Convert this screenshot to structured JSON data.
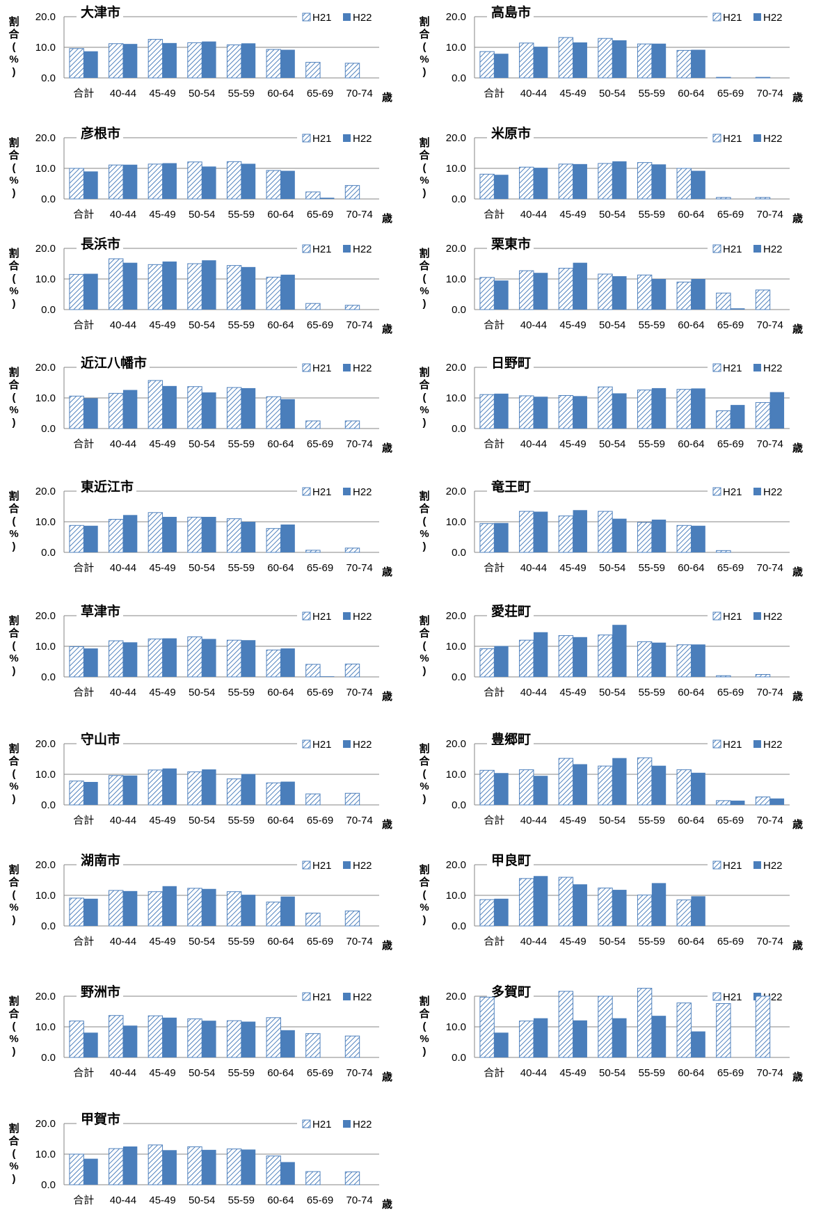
{
  "chart_data": [
    {
      "type": "bar",
      "title": "大津市",
      "ylabel": "割合(%)",
      "xunit": "歳",
      "legend": [
        "H21",
        "H22"
      ],
      "categories": [
        "合計",
        "40-44",
        "45-49",
        "50-54",
        "55-59",
        "60-64",
        "65-69",
        "70-74"
      ],
      "ylim": [
        0,
        20
      ],
      "yticks": [
        "20.0",
        "10.0",
        "0.0"
      ],
      "series": [
        {
          "name": "H21",
          "values": [
            9.6,
            11.2,
            12.6,
            11.5,
            10.8,
            9.3,
            5.1,
            4.8
          ]
        },
        {
          "name": "H22",
          "values": [
            8.7,
            11.1,
            11.4,
            11.9,
            11.3,
            9.2,
            0,
            0
          ]
        }
      ]
    },
    {
      "type": "bar",
      "title": "高島市",
      "ylabel": "割合(%)",
      "xunit": "歳",
      "legend": [
        "H21",
        "H22"
      ],
      "categories": [
        "合計",
        "40-44",
        "45-49",
        "50-54",
        "55-59",
        "60-64",
        "65-69",
        "70-74"
      ],
      "ylim": [
        0,
        20
      ],
      "yticks": [
        "20.0",
        "10.0",
        "0.0"
      ],
      "series": [
        {
          "name": "H21",
          "values": [
            8.6,
            11.4,
            13.2,
            12.9,
            11.1,
            9.0,
            0.2,
            0.2
          ]
        },
        {
          "name": "H22",
          "values": [
            7.9,
            10.2,
            11.6,
            12.3,
            11.2,
            9.2,
            0,
            0
          ]
        }
      ]
    },
    {
      "type": "bar",
      "title": "彦根市",
      "ylabel": "割合(%)",
      "xunit": "歳",
      "legend": [
        "H21",
        "H22"
      ],
      "categories": [
        "合計",
        "40-44",
        "45-49",
        "50-54",
        "55-59",
        "60-64",
        "65-69",
        "70-74"
      ],
      "ylim": [
        0,
        20
      ],
      "yticks": [
        "20.0",
        "10.0",
        "0.0"
      ],
      "series": [
        {
          "name": "H21",
          "values": [
            10.0,
            11.1,
            11.4,
            12.1,
            12.2,
            9.3,
            2.3,
            4.4
          ]
        },
        {
          "name": "H22",
          "values": [
            9.0,
            11.2,
            11.7,
            10.6,
            11.5,
            9.2,
            0.4,
            0
          ]
        }
      ]
    },
    {
      "type": "bar",
      "title": "米原市",
      "ylabel": "割合(%)",
      "xunit": "歳",
      "legend": [
        "H21",
        "H22"
      ],
      "categories": [
        "合計",
        "40-44",
        "45-49",
        "50-54",
        "55-59",
        "60-64",
        "65-69",
        "70-74"
      ],
      "ylim": [
        0,
        20
      ],
      "yticks": [
        "20.0",
        "10.0",
        "0.0"
      ],
      "series": [
        {
          "name": "H21",
          "values": [
            8.1,
            10.4,
            11.4,
            11.6,
            11.9,
            10.0,
            0.5,
            0.5
          ]
        },
        {
          "name": "H22",
          "values": [
            7.9,
            10.2,
            11.4,
            12.3,
            11.3,
            9.2,
            0,
            0
          ]
        }
      ]
    },
    {
      "type": "bar",
      "title": "長浜市",
      "ylabel": "割合(%)",
      "xunit": "歳",
      "legend": [
        "H21",
        "H22"
      ],
      "categories": [
        "合計",
        "40-44",
        "45-49",
        "50-54",
        "55-59",
        "60-64",
        "65-69",
        "70-74"
      ],
      "ylim": [
        0,
        20
      ],
      "yticks": [
        "20.0",
        "10.0",
        "0.0"
      ],
      "series": [
        {
          "name": "H21",
          "values": [
            11.5,
            16.6,
            14.7,
            15.0,
            14.4,
            10.6,
            2.0,
            1.4
          ]
        },
        {
          "name": "H22",
          "values": [
            11.7,
            15.3,
            15.7,
            16.1,
            13.9,
            11.4,
            0,
            0
          ]
        }
      ]
    },
    {
      "type": "bar",
      "title": "栗東市",
      "ylabel": "割合(%)",
      "xunit": "歳",
      "legend": [
        "H21",
        "H22"
      ],
      "categories": [
        "合計",
        "40-44",
        "45-49",
        "50-54",
        "55-59",
        "60-64",
        "65-69",
        "70-74"
      ],
      "ylim": [
        0,
        20
      ],
      "yticks": [
        "20.0",
        "10.0",
        "0.0"
      ],
      "series": [
        {
          "name": "H21",
          "values": [
            10.5,
            12.7,
            13.5,
            11.6,
            11.3,
            9.0,
            5.4,
            6.4
          ]
        },
        {
          "name": "H22",
          "values": [
            9.5,
            12.0,
            15.3,
            10.9,
            10.0,
            10.0,
            0.4,
            0
          ]
        }
      ]
    },
    {
      "type": "bar",
      "title": "近江八幡市",
      "ylabel": "割合(%)",
      "xunit": "歳",
      "legend": [
        "H21",
        "H22"
      ],
      "categories": [
        "合計",
        "40-44",
        "45-49",
        "50-54",
        "55-59",
        "60-64",
        "65-69",
        "70-74"
      ],
      "ylim": [
        0,
        20
      ],
      "yticks": [
        "20.0",
        "10.0",
        "0.0"
      ],
      "series": [
        {
          "name": "H21",
          "values": [
            10.6,
            11.5,
            15.7,
            13.7,
            13.4,
            10.4,
            2.5,
            2.5
          ]
        },
        {
          "name": "H22",
          "values": [
            9.9,
            12.6,
            13.9,
            11.8,
            13.2,
            9.6,
            0,
            0
          ]
        }
      ]
    },
    {
      "type": "bar",
      "title": "日野町",
      "ylabel": "割合(%)",
      "xunit": "歳",
      "legend": [
        "H21",
        "H22"
      ],
      "categories": [
        "合計",
        "40-44",
        "45-49",
        "50-54",
        "55-59",
        "60-64",
        "65-69",
        "70-74"
      ],
      "ylim": [
        0,
        20
      ],
      "yticks": [
        "20.0",
        "10.0",
        "0.0"
      ],
      "series": [
        {
          "name": "H21",
          "values": [
            11.1,
            10.7,
            10.8,
            13.6,
            12.6,
            12.8,
            5.8,
            8.5
          ]
        },
        {
          "name": "H22",
          "values": [
            11.4,
            10.4,
            10.6,
            11.5,
            13.2,
            13.1,
            7.7,
            11.9
          ]
        }
      ]
    },
    {
      "type": "bar",
      "title": "東近江市",
      "ylabel": "割合(%)",
      "xunit": "歳",
      "legend": [
        "H21",
        "H22"
      ],
      "categories": [
        "合計",
        "40-44",
        "45-49",
        "50-54",
        "55-59",
        "60-64",
        "65-69",
        "70-74"
      ],
      "ylim": [
        0,
        20
      ],
      "yticks": [
        "20.0",
        "10.0",
        "0.0"
      ],
      "series": [
        {
          "name": "H21",
          "values": [
            8.8,
            10.8,
            13.0,
            11.5,
            11.0,
            7.8,
            0.7,
            1.4
          ]
        },
        {
          "name": "H22",
          "values": [
            8.7,
            12.2,
            11.6,
            11.6,
            10.0,
            9.1,
            0,
            0
          ]
        }
      ]
    },
    {
      "type": "bar",
      "title": "竜王町",
      "ylabel": "割合(%)",
      "xunit": "歳",
      "legend": [
        "H21",
        "H22"
      ],
      "categories": [
        "合計",
        "40-44",
        "45-49",
        "50-54",
        "55-59",
        "60-64",
        "65-69",
        "70-74"
      ],
      "ylim": [
        0,
        20
      ],
      "yticks": [
        "20.0",
        "10.0",
        "0.0"
      ],
      "series": [
        {
          "name": "H21",
          "values": [
            9.4,
            13.4,
            11.9,
            13.4,
            9.8,
            8.8,
            0.6,
            0
          ]
        },
        {
          "name": "H22",
          "values": [
            9.6,
            13.3,
            13.8,
            11.0,
            10.7,
            8.7,
            0,
            0
          ]
        }
      ]
    },
    {
      "type": "bar",
      "title": "草津市",
      "ylabel": "割合(%)",
      "xunit": "歳",
      "legend": [
        "H21",
        "H22"
      ],
      "categories": [
        "合計",
        "40-44",
        "45-49",
        "50-54",
        "55-59",
        "60-64",
        "65-69",
        "70-74"
      ],
      "ylim": [
        0,
        20
      ],
      "yticks": [
        "20.0",
        "10.0",
        "0.0"
      ],
      "series": [
        {
          "name": "H21",
          "values": [
            9.9,
            11.8,
            12.4,
            13.1,
            12.0,
            8.8,
            4.1,
            4.2
          ]
        },
        {
          "name": "H22",
          "values": [
            9.3,
            11.3,
            12.6,
            12.4,
            12.0,
            9.3,
            0.2,
            0
          ]
        }
      ]
    },
    {
      "type": "bar",
      "title": "愛荘町",
      "ylabel": "割合(%)",
      "xunit": "歳",
      "legend": [
        "H21",
        "H22"
      ],
      "categories": [
        "合計",
        "40-44",
        "45-49",
        "50-54",
        "55-59",
        "60-64",
        "65-69",
        "70-74"
      ],
      "ylim": [
        0,
        20
      ],
      "yticks": [
        "20.0",
        "10.0",
        "0.0"
      ],
      "series": [
        {
          "name": "H21",
          "values": [
            9.2,
            12.0,
            13.5,
            13.7,
            11.5,
            10.5,
            0.4,
            0.8
          ]
        },
        {
          "name": "H22",
          "values": [
            10.1,
            14.6,
            13.0,
            17.0,
            11.2,
            10.6,
            0,
            0
          ]
        }
      ]
    },
    {
      "type": "bar",
      "title": "守山市",
      "ylabel": "割合(%)",
      "xunit": "歳",
      "legend": [
        "H21",
        "H22"
      ],
      "categories": [
        "合計",
        "40-44",
        "45-49",
        "50-54",
        "55-59",
        "60-64",
        "65-69",
        "70-74"
      ],
      "ylim": [
        0,
        20
      ],
      "yticks": [
        "20.0",
        "10.0",
        "0.0"
      ],
      "series": [
        {
          "name": "H21",
          "values": [
            7.8,
            9.6,
            11.4,
            10.8,
            8.5,
            7.2,
            3.6,
            3.8
          ]
        },
        {
          "name": "H22",
          "values": [
            7.5,
            9.6,
            11.9,
            11.6,
            10.1,
            7.6,
            0,
            0
          ]
        }
      ]
    },
    {
      "type": "bar",
      "title": "豊郷町",
      "ylabel": "割合(%)",
      "xunit": "歳",
      "legend": [
        "H21",
        "H22"
      ],
      "categories": [
        "合計",
        "40-44",
        "45-49",
        "50-54",
        "55-59",
        "60-64",
        "65-69",
        "70-74"
      ],
      "ylim": [
        0,
        20
      ],
      "yticks": [
        "20.0",
        "10.0",
        "0.0"
      ],
      "series": [
        {
          "name": "H21",
          "values": [
            11.3,
            11.5,
            15.2,
            12.7,
            15.4,
            11.5,
            1.4,
            2.6
          ]
        },
        {
          "name": "H22",
          "values": [
            10.4,
            9.5,
            13.3,
            15.3,
            12.8,
            10.5,
            1.4,
            2.1
          ]
        }
      ]
    },
    {
      "type": "bar",
      "title": "湖南市",
      "ylabel": "割合(%)",
      "xunit": "歳",
      "legend": [
        "H21",
        "H22"
      ],
      "categories": [
        "合計",
        "40-44",
        "45-49",
        "50-54",
        "55-59",
        "60-64",
        "65-69",
        "70-74"
      ],
      "ylim": [
        0,
        20
      ],
      "yticks": [
        "20.0",
        "10.0",
        "0.0"
      ],
      "series": [
        {
          "name": "H21",
          "values": [
            9.1,
            11.6,
            11.2,
            12.3,
            11.2,
            7.8,
            4.2,
            4.9
          ]
        },
        {
          "name": "H22",
          "values": [
            8.9,
            11.4,
            13.0,
            12.1,
            10.2,
            9.6,
            0,
            0
          ]
        }
      ]
    },
    {
      "type": "bar",
      "title": "甲良町",
      "ylabel": "割合(%)",
      "xunit": "歳",
      "legend": [
        "H21",
        "H22"
      ],
      "categories": [
        "合計",
        "40-44",
        "45-49",
        "50-54",
        "55-59",
        "60-64",
        "65-69",
        "70-74"
      ],
      "ylim": [
        0,
        20
      ],
      "yticks": [
        "20.0",
        "10.0",
        "0.0"
      ],
      "series": [
        {
          "name": "H21",
          "values": [
            8.6,
            15.5,
            15.9,
            12.4,
            10.1,
            8.5,
            0,
            0
          ]
        },
        {
          "name": "H22",
          "values": [
            8.9,
            16.3,
            13.6,
            11.8,
            14.0,
            9.7,
            0,
            0
          ]
        }
      ]
    },
    {
      "type": "bar",
      "title": "野洲市",
      "ylabel": "割合(%)",
      "xunit": "歳",
      "legend": [
        "H21",
        "H22"
      ],
      "categories": [
        "合計",
        "40-44",
        "45-49",
        "50-54",
        "55-59",
        "60-64",
        "65-69",
        "70-74"
      ],
      "ylim": [
        0,
        20
      ],
      "yticks": [
        "20.0",
        "10.0",
        "0.0"
      ],
      "series": [
        {
          "name": "H21",
          "values": [
            11.9,
            13.7,
            13.6,
            12.6,
            12.0,
            13.0,
            7.8,
            7.0
          ]
        },
        {
          "name": "H22",
          "values": [
            8.1,
            10.4,
            13.0,
            12.0,
            11.7,
            8.9,
            0,
            0
          ]
        }
      ]
    },
    {
      "type": "bar",
      "title": "多賀町",
      "ylabel": "割合(%)",
      "xunit": "歳",
      "legend": [
        "H21",
        "H22"
      ],
      "categories": [
        "合計",
        "40-44",
        "45-49",
        "50-54",
        "55-59",
        "60-64",
        "65-69",
        "70-74"
      ],
      "ylim": [
        0,
        20
      ],
      "yticks": [
        "20.0",
        "10.0",
        "0.0"
      ],
      "series": [
        {
          "name": "H21",
          "values": [
            19.7,
            11.9,
            21.6,
            20.0,
            22.6,
            17.8,
            17.6,
            20.0
          ]
        },
        {
          "name": "H22",
          "values": [
            8.1,
            12.8,
            12.1,
            12.8,
            13.6,
            8.5,
            0,
            0
          ]
        }
      ]
    },
    {
      "type": "bar",
      "title": "甲賀市",
      "ylabel": "割合(%)",
      "xunit": "歳",
      "legend": [
        "H21",
        "H22"
      ],
      "categories": [
        "合計",
        "40-44",
        "45-49",
        "50-54",
        "55-59",
        "60-64",
        "65-69",
        "70-74"
      ],
      "ylim": [
        0,
        20
      ],
      "yticks": [
        "20.0",
        "10.0",
        "0.0"
      ],
      "series": [
        {
          "name": "H21",
          "values": [
            10.0,
            11.8,
            13.0,
            12.4,
            11.7,
            9.4,
            4.3,
            4.2
          ]
        },
        {
          "name": "H22",
          "values": [
            8.5,
            12.5,
            11.3,
            11.4,
            11.5,
            7.4,
            0,
            0
          ]
        }
      ]
    }
  ]
}
